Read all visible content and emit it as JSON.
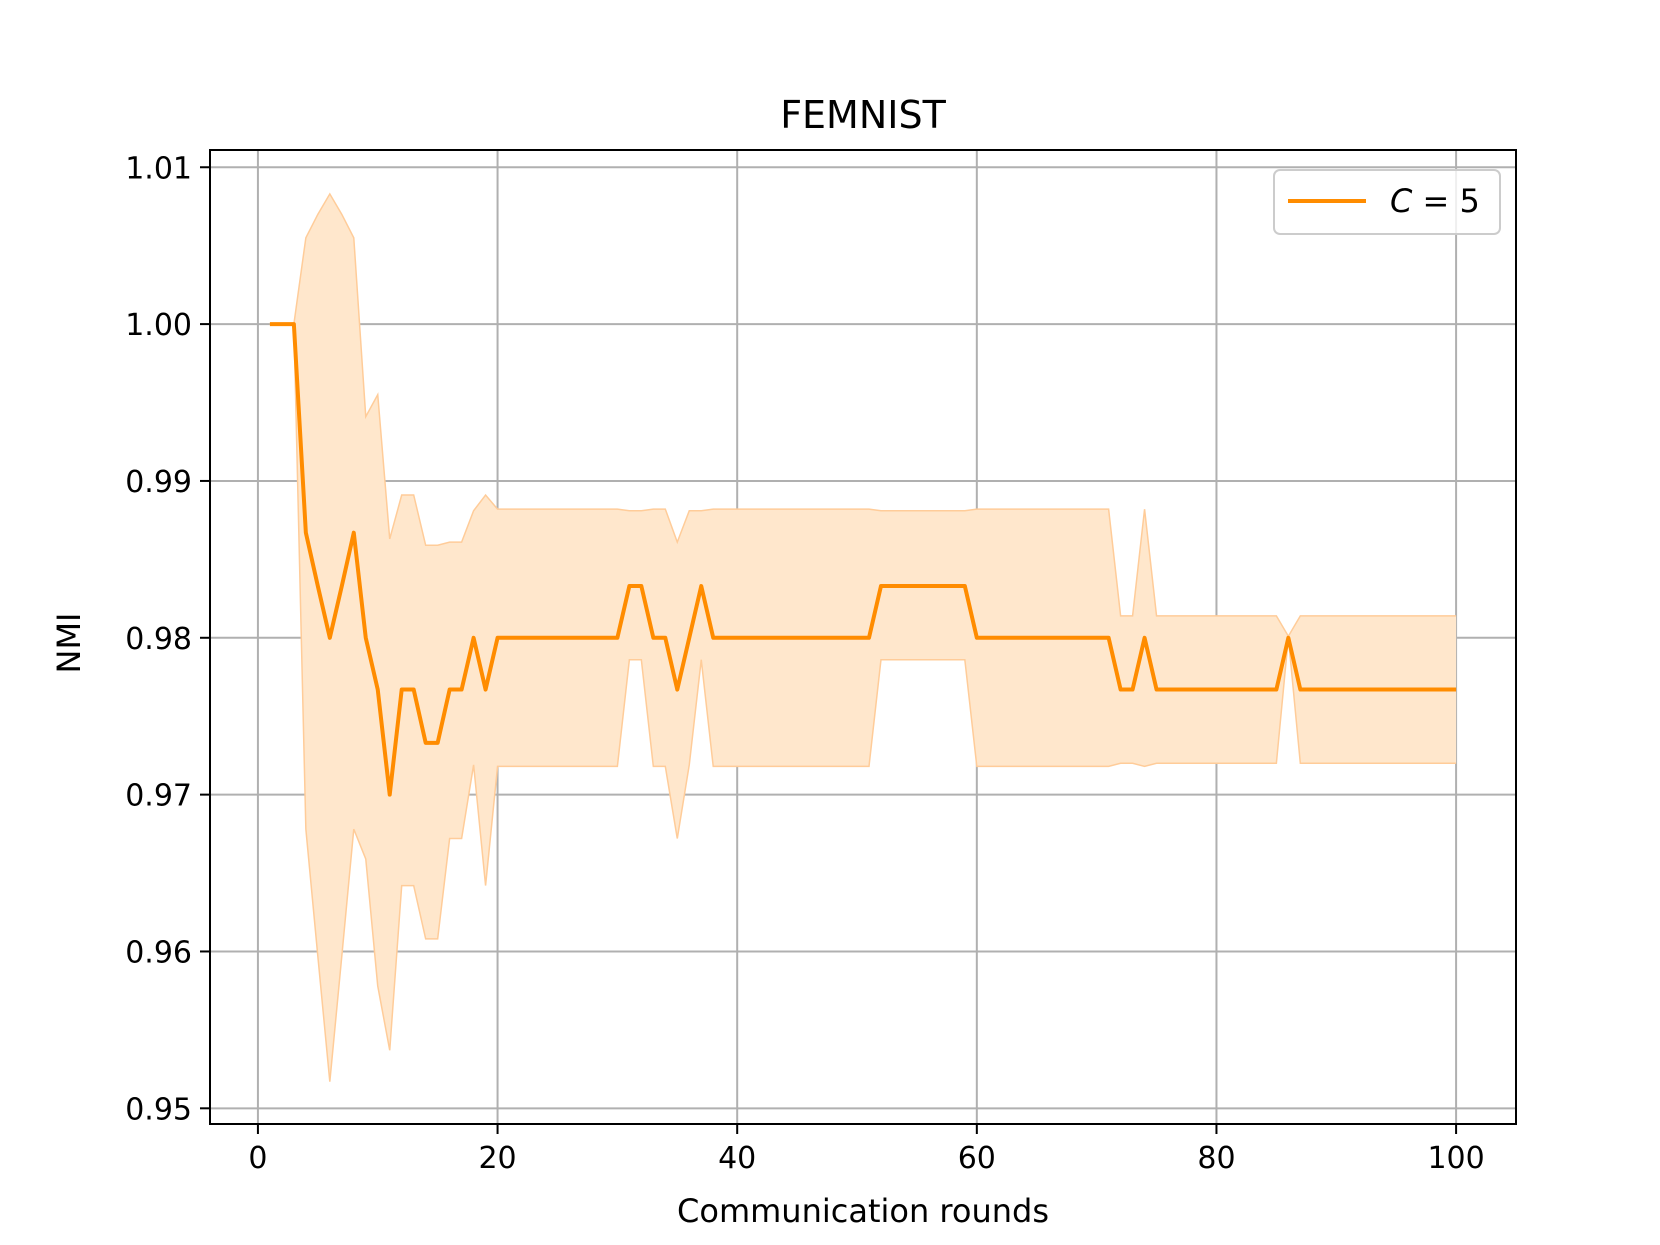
{
  "chart_data": {
    "type": "line",
    "title": "FEMNIST",
    "xlabel": "Communication rounds",
    "ylabel": "NMI",
    "xlim": [
      -4,
      105
    ],
    "ylim": [
      0.949,
      1.0111
    ],
    "xticks": [
      0,
      20,
      40,
      60,
      80,
      100
    ],
    "yticks": [
      0.95,
      0.96,
      0.97,
      0.98,
      0.99,
      1.0,
      1.01
    ],
    "ytick_labels": [
      "0.95",
      "0.96",
      "0.97",
      "0.98",
      "0.99",
      "1.00",
      "1.01"
    ],
    "grid": true,
    "legend_position": "top-right",
    "colors": {
      "line": "#ff8c00",
      "band": "#ffe7cc",
      "band_edge": "#ffcc99",
      "grid": "#b0b0b0"
    },
    "series": [
      {
        "name_var": "C",
        "name_op": " = ",
        "name_val": "5",
        "x": [
          1,
          2,
          3,
          4,
          5,
          6,
          7,
          8,
          9,
          10,
          11,
          12,
          13,
          14,
          15,
          16,
          17,
          18,
          19,
          20,
          21,
          22,
          23,
          24,
          25,
          26,
          27,
          28,
          29,
          30,
          31,
          32,
          33,
          34,
          35,
          36,
          37,
          38,
          39,
          40,
          41,
          42,
          43,
          44,
          45,
          46,
          47,
          48,
          49,
          50,
          51,
          52,
          53,
          54,
          55,
          56,
          57,
          58,
          59,
          60,
          61,
          62,
          63,
          64,
          65,
          66,
          67,
          68,
          69,
          70,
          71,
          72,
          73,
          74,
          75,
          76,
          77,
          78,
          79,
          80,
          81,
          82,
          83,
          84,
          85,
          86,
          87,
          88,
          89,
          90,
          91,
          92,
          93,
          94,
          95,
          96,
          97,
          98,
          99,
          100
        ],
        "y": [
          1.0,
          1.0,
          1.0,
          0.9867,
          0.9833,
          0.98,
          0.9833,
          0.9867,
          0.98,
          0.9767,
          0.97,
          0.9767,
          0.9767,
          0.9733,
          0.9733,
          0.9767,
          0.9767,
          0.98,
          0.9767,
          0.98,
          0.98,
          0.98,
          0.98,
          0.98,
          0.98,
          0.98,
          0.98,
          0.98,
          0.98,
          0.98,
          0.9833,
          0.9833,
          0.98,
          0.98,
          0.9767,
          0.98,
          0.9833,
          0.98,
          0.98,
          0.98,
          0.98,
          0.98,
          0.98,
          0.98,
          0.98,
          0.98,
          0.98,
          0.98,
          0.98,
          0.98,
          0.98,
          0.9833,
          0.9833,
          0.9833,
          0.9833,
          0.9833,
          0.9833,
          0.9833,
          0.9833,
          0.98,
          0.98,
          0.98,
          0.98,
          0.98,
          0.98,
          0.98,
          0.98,
          0.98,
          0.98,
          0.98,
          0.98,
          0.9767,
          0.9767,
          0.98,
          0.9767,
          0.9767,
          0.9767,
          0.9767,
          0.9767,
          0.9767,
          0.9767,
          0.9767,
          0.9767,
          0.9767,
          0.9767,
          0.98,
          0.9767,
          0.9767,
          0.9767,
          0.9767,
          0.9767,
          0.9767,
          0.9767,
          0.9767,
          0.9767,
          0.9767,
          0.9767,
          0.9767,
          0.9767,
          0.9767
        ],
        "upper": [
          1.0,
          1.0,
          1.0,
          1.0055,
          1.007,
          1.0083,
          1.007,
          1.0055,
          0.9941,
          0.9955,
          0.9863,
          0.9891,
          0.9891,
          0.9859,
          0.9859,
          0.9861,
          0.9861,
          0.9881,
          0.9891,
          0.9882,
          0.9882,
          0.9882,
          0.9882,
          0.9882,
          0.9882,
          0.9882,
          0.9882,
          0.9882,
          0.9882,
          0.9882,
          0.9881,
          0.9881,
          0.9882,
          0.9882,
          0.9861,
          0.9881,
          0.9881,
          0.9882,
          0.9882,
          0.9882,
          0.9882,
          0.9882,
          0.9882,
          0.9882,
          0.9882,
          0.9882,
          0.9882,
          0.9882,
          0.9882,
          0.9882,
          0.9882,
          0.9881,
          0.9881,
          0.9881,
          0.9881,
          0.9881,
          0.9881,
          0.9881,
          0.9881,
          0.9882,
          0.9882,
          0.9882,
          0.9882,
          0.9882,
          0.9882,
          0.9882,
          0.9882,
          0.9882,
          0.9882,
          0.9882,
          0.9882,
          0.9814,
          0.9814,
          0.9882,
          0.9814,
          0.9814,
          0.9814,
          0.9814,
          0.9814,
          0.9814,
          0.9814,
          0.9814,
          0.9814,
          0.9814,
          0.9814,
          0.9801,
          0.9814,
          0.9814,
          0.9814,
          0.9814,
          0.9814,
          0.9814,
          0.9814,
          0.9814,
          0.9814,
          0.9814,
          0.9814,
          0.9814,
          0.9814,
          0.9814
        ],
        "lower": [
          1.0,
          1.0,
          1.0,
          0.9678,
          0.9597,
          0.9517,
          0.9597,
          0.9678,
          0.9659,
          0.9578,
          0.9537,
          0.9642,
          0.9642,
          0.9608,
          0.9608,
          0.9672,
          0.9672,
          0.9719,
          0.9642,
          0.9718,
          0.9718,
          0.9718,
          0.9718,
          0.9718,
          0.9718,
          0.9718,
          0.9718,
          0.9718,
          0.9718,
          0.9718,
          0.9786,
          0.9786,
          0.9718,
          0.9718,
          0.9672,
          0.9719,
          0.9786,
          0.9718,
          0.9718,
          0.9718,
          0.9718,
          0.9718,
          0.9718,
          0.9718,
          0.9718,
          0.9718,
          0.9718,
          0.9718,
          0.9718,
          0.9718,
          0.9718,
          0.9786,
          0.9786,
          0.9786,
          0.9786,
          0.9786,
          0.9786,
          0.9786,
          0.9786,
          0.9718,
          0.9718,
          0.9718,
          0.9718,
          0.9718,
          0.9718,
          0.9718,
          0.9718,
          0.9718,
          0.9718,
          0.9718,
          0.9718,
          0.972,
          0.972,
          0.9718,
          0.972,
          0.972,
          0.972,
          0.972,
          0.972,
          0.972,
          0.972,
          0.972,
          0.972,
          0.972,
          0.972,
          0.98,
          0.972,
          0.972,
          0.972,
          0.972,
          0.972,
          0.972,
          0.972,
          0.972,
          0.972,
          0.972,
          0.972,
          0.972,
          0.972,
          0.972
        ]
      }
    ]
  }
}
